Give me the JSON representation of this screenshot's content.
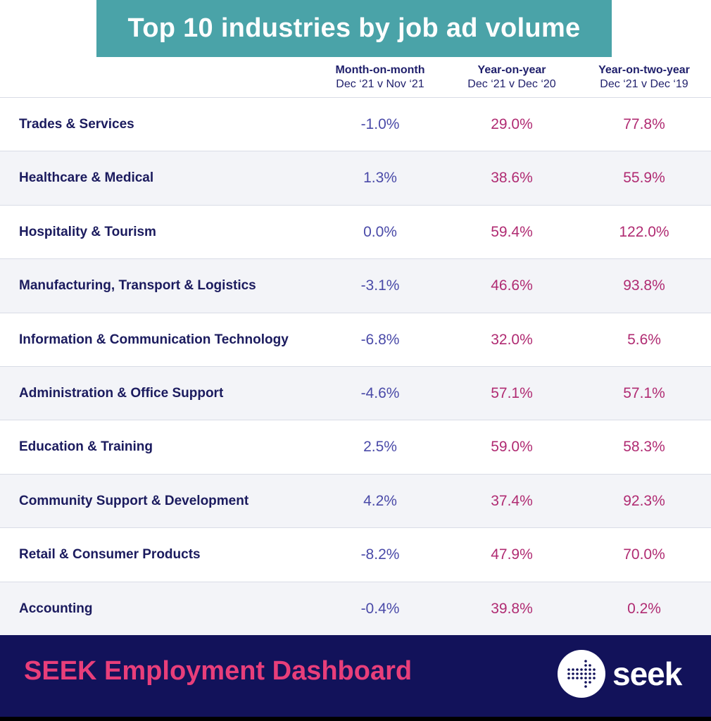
{
  "title": "Top 10 industries by job ad volume",
  "columns": [
    {
      "heading": "Month-on-month",
      "subheading": "Dec ‘21 v Nov ‘21"
    },
    {
      "heading": "Year-on-year",
      "subheading": "Dec ‘21 v Dec ‘20"
    },
    {
      "heading": "Year-on-two-year",
      "subheading": "Dec ‘21 v Dec ‘19"
    }
  ],
  "rows": [
    {
      "industry": "Trades & Services",
      "mom": "-1.0%",
      "yoy": "29.0%",
      "y2y": "77.8%"
    },
    {
      "industry": "Healthcare & Medical",
      "mom": "1.3%",
      "yoy": "38.6%",
      "y2y": "55.9%"
    },
    {
      "industry": "Hospitality & Tourism",
      "mom": "0.0%",
      "yoy": "59.4%",
      "y2y": "122.0%"
    },
    {
      "industry": "Manufacturing, Transport & Logistics",
      "mom": "-3.1%",
      "yoy": "46.6%",
      "y2y": "93.8%"
    },
    {
      "industry": "Information & Communication Technology",
      "mom": "-6.8%",
      "yoy": "32.0%",
      "y2y": "5.6%"
    },
    {
      "industry": "Administration & Office Support",
      "mom": "-4.6%",
      "yoy": "57.1%",
      "y2y": "57.1%"
    },
    {
      "industry": "Education & Training",
      "mom": "2.5%",
      "yoy": "59.0%",
      "y2y": "58.3%"
    },
    {
      "industry": "Community Support & Development",
      "mom": "4.2%",
      "yoy": "37.4%",
      "y2y": "92.3%"
    },
    {
      "industry": "Retail & Consumer Products",
      "mom": "-8.2%",
      "yoy": "47.9%",
      "y2y": "70.0%"
    },
    {
      "industry": "Accounting",
      "mom": "-0.4%",
      "yoy": "39.8%",
      "y2y": "0.2%"
    }
  ],
  "footer": {
    "title": "SEEK Employment Dashboard",
    "logo_text": "seek",
    "logo_icon": "seek-dotted-arrow-icon"
  },
  "colors": {
    "title_bg": "#4aa3a8",
    "footer_bg": "#12125a",
    "footer_text": "#e83e7a",
    "mom_value": "#4a4aa8",
    "yoy_value": "#b02b72",
    "label_text": "#1b1b5e"
  },
  "chart_data": {
    "type": "table",
    "title": "Top 10 industries by job ad volume",
    "columns": [
      "Month-on-month",
      "Year-on-year",
      "Year-on-two-year"
    ],
    "categories": [
      "Trades & Services",
      "Healthcare & Medical",
      "Hospitality & Tourism",
      "Manufacturing, Transport & Logistics",
      "Information & Communication Technology",
      "Administration & Office Support",
      "Education & Training",
      "Community Support & Development",
      "Retail & Consumer Products",
      "Accounting"
    ],
    "series": [
      {
        "name": "Month-on-month",
        "values": [
          -1.0,
          1.3,
          0.0,
          -3.1,
          -6.8,
          -4.6,
          2.5,
          4.2,
          -8.2,
          -0.4
        ]
      },
      {
        "name": "Year-on-year",
        "values": [
          29.0,
          38.6,
          59.4,
          46.6,
          32.0,
          57.1,
          59.0,
          37.4,
          47.9,
          39.8
        ]
      },
      {
        "name": "Year-on-two-year",
        "values": [
          77.8,
          55.9,
          122.0,
          93.8,
          5.6,
          57.1,
          58.3,
          92.3,
          70.0,
          0.2
        ]
      }
    ]
  }
}
